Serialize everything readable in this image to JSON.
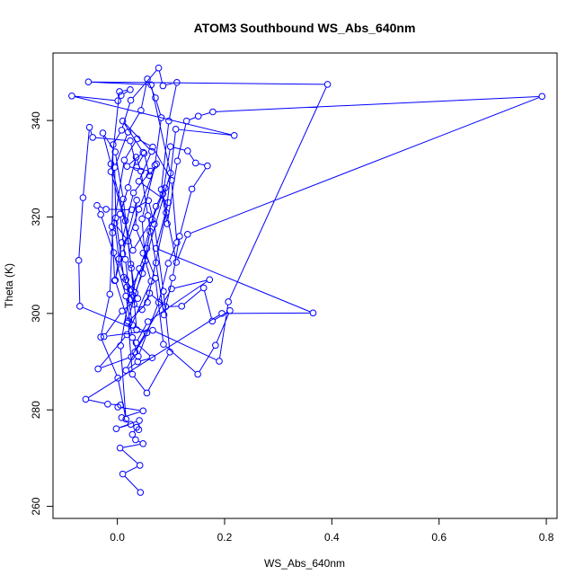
{
  "chart_data": {
    "type": "line",
    "title": "ATOM3 Southbound WS_Abs_640nm",
    "xlabel": "WS_Abs_640nm",
    "ylabel": "Theta (K)",
    "xlim": [
      -0.12,
      0.82
    ],
    "ylim": [
      257.5,
      354
    ],
    "x_ticks": [
      {
        "value": 0.0,
        "label": "0.0"
      },
      {
        "value": 0.2,
        "label": "0.2"
      },
      {
        "value": 0.4,
        "label": "0.4"
      },
      {
        "value": 0.6,
        "label": "0.6"
      },
      {
        "value": 0.8,
        "label": "0.8"
      }
    ],
    "y_ticks": [
      {
        "value": 260,
        "label": "260"
      },
      {
        "value": 280,
        "label": "280"
      },
      {
        "value": 300,
        "label": "300"
      },
      {
        "value": 320,
        "label": "320"
      },
      {
        "value": 340,
        "label": "340"
      }
    ],
    "grid": false,
    "legend": "none",
    "marker": "open-circle",
    "color": "#0000ff",
    "series": [
      {
        "points": [
          [
            0.043,
            262.9
          ],
          [
            0.01,
            266.7
          ],
          [
            0.042,
            268.5
          ],
          [
            0.005,
            272.1
          ],
          [
            0.048,
            273.0
          ],
          [
            0.034,
            273.8
          ],
          [
            0.028,
            274.9
          ],
          [
            0.036,
            276.4
          ],
          [
            0.04,
            275.9
          ],
          [
            0.041,
            277.8
          ],
          [
            -0.002,
            276.1
          ],
          [
            0.025,
            277.0
          ],
          [
            0.008,
            278.4
          ],
          [
            0.048,
            279.8
          ],
          [
            0.001,
            280.6
          ],
          [
            0.006,
            281.0
          ],
          [
            -0.018,
            281.2
          ],
          [
            -0.059,
            282.2
          ],
          [
            0.195,
            300.0
          ],
          [
            0.365,
            300.1
          ],
          [
            0.072,
            313.5
          ],
          [
            0.095,
            323.0
          ],
          [
            0.04,
            327.4
          ],
          [
            0.064,
            333.6
          ],
          [
            0.01,
            339.9
          ],
          [
            0.048,
            333.4
          ],
          [
            0.018,
            330.5
          ],
          [
            0.062,
            329.5
          ],
          [
            0.03,
            325.0
          ],
          [
            0.008,
            314.7
          ],
          [
            -0.004,
            306.9
          ],
          [
            0.02,
            298.4
          ],
          [
            0.028,
            287.4
          ],
          [
            0.055,
            283.5
          ],
          [
            0.098,
            292.0
          ],
          [
            0.086,
            304.6
          ],
          [
            0.069,
            318.5
          ],
          [
            0.058,
            323.4
          ],
          [
            0.027,
            321.5
          ],
          [
            -0.021,
            321.6
          ],
          [
            -0.038,
            322.4
          ],
          [
            -0.031,
            320.5
          ],
          [
            -0.007,
            312.6
          ],
          [
            0.016,
            303.6
          ],
          [
            0.028,
            295.0
          ],
          [
            0.039,
            291.1
          ],
          [
            0.077,
            302.3
          ],
          [
            0.095,
            310.4
          ],
          [
            0.111,
            314.7
          ],
          [
            0.101,
            327.6
          ],
          [
            0.066,
            334.5
          ],
          [
            0.037,
            336.2
          ],
          [
            0.013,
            331.8
          ],
          [
            -0.009,
            316.7
          ],
          [
            -0.014,
            304.0
          ],
          [
            -0.031,
            295.1
          ],
          [
            0.001,
            286.6
          ],
          [
            0.016,
            278.1
          ],
          [
            0.006,
            293.3
          ],
          [
            0.024,
            305.0
          ],
          [
            0.052,
            310.9
          ],
          [
            0.046,
            319.6
          ],
          [
            0.07,
            330.7
          ],
          [
            0.082,
            340.6
          ],
          [
            0.071,
            344.7
          ],
          [
            0.056,
            348.6
          ],
          [
            0.044,
            342.1
          ],
          [
            0.02,
            337.6
          ],
          [
            -0.005,
            330.3
          ],
          [
            -0.003,
            319.8
          ],
          [
            0.012,
            307.5
          ],
          [
            0.031,
            301.9
          ],
          [
            0.046,
            300.8
          ],
          [
            0.06,
            304.2
          ],
          [
            0.09,
            301.4
          ],
          [
            0.12,
            301.5
          ],
          [
            0.161,
            305.3
          ],
          [
            0.177,
            298.4
          ],
          [
            0.21,
            300.6
          ],
          [
            0.183,
            293.4
          ],
          [
            0.15,
            287.4
          ],
          [
            0.086,
            293.6
          ],
          [
            0.071,
            307.3
          ],
          [
            0.034,
            317.8
          ],
          [
            0.036,
            323.5
          ],
          [
            0.01,
            312.4
          ],
          [
            -0.005,
            306.8
          ],
          [
            -0.01,
            318.0
          ],
          [
            -0.008,
            335.0
          ],
          [
            0.008,
            338.0
          ],
          [
            0.025,
            344.2
          ],
          [
            0.077,
            350.9
          ],
          [
            0.085,
            347.2
          ],
          [
            0.111,
            347.9
          ],
          [
            0.096,
            339.9
          ],
          [
            0.082,
            325.7
          ],
          [
            0.093,
            318.6
          ],
          [
            0.112,
            331.6
          ],
          [
            0.129,
            339.9
          ],
          [
            0.151,
            340.9
          ],
          [
            0.178,
            341.8
          ],
          [
            0.792,
            345.0
          ],
          [
            0.131,
            316.4
          ],
          [
            0.11,
            310.6
          ],
          [
            0.085,
            324.8
          ],
          [
            0.099,
            334.6
          ],
          [
            0.131,
            333.7
          ],
          [
            0.146,
            331.2
          ],
          [
            0.168,
            330.6
          ],
          [
            0.139,
            325.8
          ],
          [
            0.116,
            316.0
          ],
          [
            0.103,
            307.4
          ],
          [
            0.087,
            299.7
          ],
          [
            0.072,
            310.5
          ],
          [
            0.057,
            320.3
          ],
          [
            0.044,
            329.5
          ],
          [
            0.035,
            332.4
          ],
          [
            0.02,
            326.1
          ],
          [
            0.005,
            320.6
          ],
          [
            0.015,
            311.2
          ],
          [
            0.024,
            302.9
          ],
          [
            0.041,
            309.3
          ],
          [
            0.055,
            313.5
          ],
          [
            0.061,
            317.0
          ],
          [
            0.047,
            308.3
          ],
          [
            0.033,
            304.3
          ],
          [
            0.025,
            310.2
          ],
          [
            0.015,
            319.2
          ],
          [
            -0.012,
            331.0
          ],
          [
            -0.027,
            337.4
          ],
          [
            -0.004,
            333.5
          ],
          [
            0.011,
            323.7
          ],
          [
            0.026,
            309.4
          ],
          [
            0.036,
            296.6
          ],
          [
            -0.07,
            301.5
          ],
          [
            -0.072,
            311.0
          ],
          [
            -0.064,
            324.0
          ],
          [
            -0.052,
            338.6
          ],
          [
            -0.046,
            336.5
          ],
          [
            0.024,
            335.8
          ],
          [
            0.036,
            330.3
          ],
          [
            0.05,
            333.2
          ],
          [
            0.06,
            328.6
          ],
          [
            0.073,
            331.0
          ],
          [
            0.04,
            321.6
          ],
          [
            0.02,
            315.0
          ],
          [
            -0.005,
            318.7
          ],
          [
            0.003,
            311.3
          ],
          [
            0.018,
            305.5
          ],
          [
            0.028,
            297.6
          ],
          [
            0.055,
            296.0
          ],
          [
            0.033,
            292.0
          ],
          [
            0.016,
            288.2
          ],
          [
            0.038,
            290.0
          ],
          [
            0.065,
            290.8
          ],
          [
            0.035,
            293.9
          ],
          [
            0.057,
            298.3
          ],
          [
            0.172,
            307.0
          ],
          [
            0.101,
            305.1
          ],
          [
            0.026,
            291.0
          ],
          [
            -0.036,
            288.5
          ],
          [
            0.018,
            295.6
          ],
          [
            0.063,
            306.7
          ],
          [
            0.048,
            312.5
          ],
          [
            0.072,
            322.2
          ],
          [
            0.089,
            326.0
          ],
          [
            0.065,
            319.4
          ],
          [
            0.029,
            313.1
          ],
          [
            -0.012,
            329.4
          ],
          [
            0.004,
            346.0
          ],
          [
            0.024,
            346.4
          ],
          [
            0.007,
            345.2
          ],
          [
            0.001,
            344.1
          ],
          [
            -0.085,
            345.1
          ],
          [
            0.218,
            336.9
          ],
          [
            0.109,
            338.2
          ],
          [
            0.091,
            320.9
          ],
          [
            0.056,
            302.3
          ],
          [
            0.018,
            298.0
          ],
          [
            0.099,
            329.1
          ],
          [
            0.063,
            347.4
          ],
          [
            -0.054,
            348.0
          ],
          [
            0.392,
            347.5
          ],
          [
            0.207,
            302.4
          ],
          [
            0.19,
            290.1
          ],
          [
            0.066,
            296.5
          ],
          [
            -0.025,
            295.2
          ],
          [
            0.009,
            300.5
          ],
          [
            0.038,
            303.1
          ],
          [
            0.016,
            307.0
          ]
        ]
      }
    ]
  }
}
